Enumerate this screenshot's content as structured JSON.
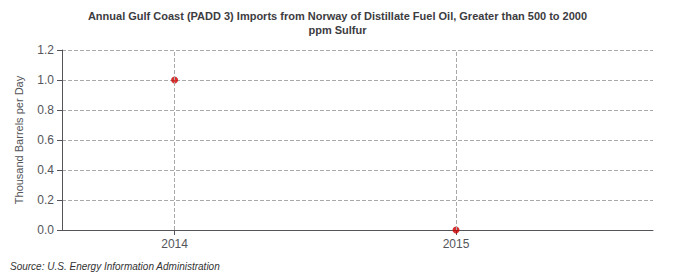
{
  "chart_data": {
    "type": "scatter",
    "title": "Annual Gulf Coast (PADD 3) Imports from Norway of Distillate Fuel Oil, Greater than 500 to 2000\nppm Sulfur",
    "ylabel": "Thousand Barrels per Day",
    "source": "Source: U.S. Energy Information Administration",
    "x": [
      2014,
      2015
    ],
    "values": [
      1.0,
      0.0
    ],
    "xlim": [
      2013.6,
      2015.7
    ],
    "ylim": [
      0.0,
      1.2
    ],
    "xticks": [
      2014,
      2015
    ],
    "yticks": [
      {
        "value": 0,
        "label": "0.0"
      },
      0.2,
      0.4,
      0.6,
      0.8,
      {
        "value": 1,
        "label": "1.0"
      },
      1.2
    ],
    "grid": true,
    "color": "#cc0000",
    "marker": "circle"
  }
}
